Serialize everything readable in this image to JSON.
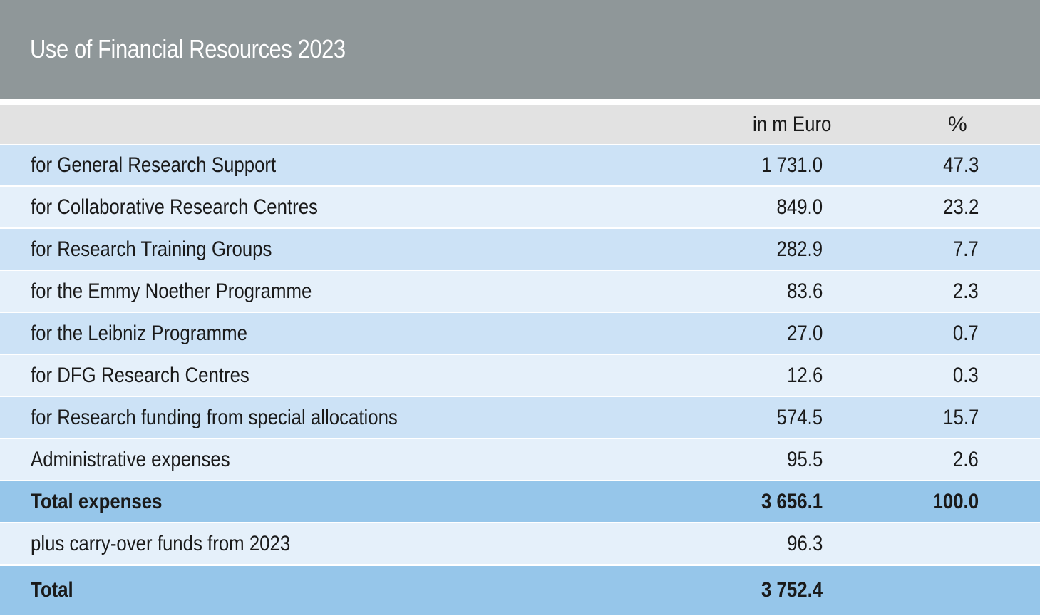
{
  "title": "Use of Financial Resources 2023",
  "columns": {
    "euro": "in m Euro",
    "percent": "%"
  },
  "rows": [
    {
      "label": "for General Research Support",
      "value": "1 731.0",
      "percent": "47.3"
    },
    {
      "label": "for Collaborative Research Centres",
      "value": "849.0",
      "percent": "23.2"
    },
    {
      "label": "for Research Training Groups",
      "value": "282.9",
      "percent": "7.7"
    },
    {
      "label": "for the Emmy Noether Programme",
      "value": "83.6",
      "percent": "2.3"
    },
    {
      "label": "for the Leibniz Programme",
      "value": "27.0",
      "percent": "0.7"
    },
    {
      "label": "for DFG Research Centres",
      "value": "12.6",
      "percent": "0.3"
    },
    {
      "label": "for Research funding from special allocations",
      "value": "574.5",
      "percent": "15.7"
    },
    {
      "label": "Administrative expenses",
      "value": "95.5",
      "percent": "2.6"
    }
  ],
  "total_expenses": {
    "label": "Total expenses",
    "value": "3 656.1",
    "percent": "100.0"
  },
  "carry_over": {
    "label": "plus carry-over funds from 2023",
    "value": "96.3"
  },
  "grand_total": {
    "label": "Total",
    "value": "3 752.4"
  },
  "colors": {
    "title_bar": "#8f9799",
    "header_row": "#e2e2e2",
    "row_dark": "#cce2f6",
    "row_light": "#e5f0fa",
    "total_row": "#96c6ea"
  }
}
